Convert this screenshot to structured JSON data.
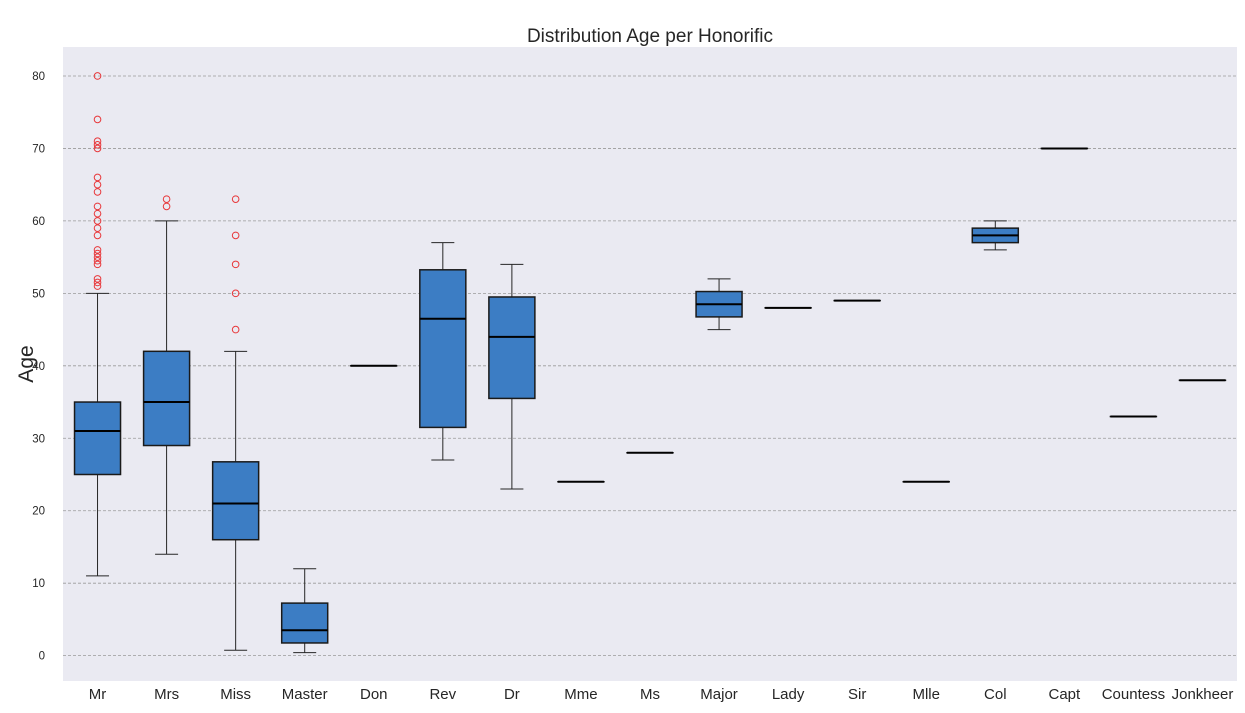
{
  "chart_data": {
    "type": "boxplot",
    "title": "Distribution Age per Honorific",
    "xlabel": "",
    "ylabel": "Age",
    "ylim": [
      -3.5,
      84
    ],
    "yticks": [
      0,
      10,
      20,
      30,
      40,
      50,
      60,
      70,
      80
    ],
    "grid": "horizontal dashed",
    "colors": {
      "background": "#eaeaf2",
      "box_fill": "#3c7dc4",
      "box_edge": "#1a1a1a",
      "median": "#000000",
      "whisker": "#262626",
      "outlier": "#e8383b",
      "grid": "#9a9a9a"
    },
    "categories": [
      "Mr",
      "Mrs",
      "Miss",
      "Master",
      "Don",
      "Rev",
      "Dr",
      "Mme",
      "Ms",
      "Major",
      "Lady",
      "Sir",
      "Mlle",
      "Col",
      "Capt",
      "Countess",
      "Jonkheer"
    ],
    "boxes": [
      {
        "label": "Mr",
        "whislo": 11,
        "q1": 25,
        "med": 31,
        "q3": 35,
        "whishi": 50,
        "fliers": [
          51,
          51.5,
          52,
          54,
          54.5,
          55,
          55.5,
          56,
          58,
          59,
          60,
          61,
          62,
          64,
          65,
          66,
          70,
          70.5,
          71,
          74,
          80
        ]
      },
      {
        "label": "Mrs",
        "whislo": 14,
        "q1": 29,
        "med": 35,
        "q3": 42,
        "whishi": 60,
        "fliers": [
          62,
          63
        ]
      },
      {
        "label": "Miss",
        "whislo": 0.75,
        "q1": 16,
        "med": 21,
        "q3": 26.75,
        "whishi": 42,
        "fliers": [
          45,
          50,
          54,
          58,
          63
        ]
      },
      {
        "label": "Master",
        "whislo": 0.42,
        "q1": 1.75,
        "med": 3.5,
        "q3": 7.25,
        "whishi": 12,
        "fliers": []
      },
      {
        "label": "Don",
        "whislo": 40,
        "q1": 40,
        "med": 40,
        "q3": 40,
        "whishi": 40,
        "fliers": []
      },
      {
        "label": "Rev",
        "whislo": 27,
        "q1": 31.5,
        "med": 46.5,
        "q3": 53.25,
        "whishi": 57,
        "fliers": []
      },
      {
        "label": "Dr",
        "whislo": 23,
        "q1": 35.5,
        "med": 44,
        "q3": 49.5,
        "whishi": 54,
        "fliers": []
      },
      {
        "label": "Mme",
        "whislo": 24,
        "q1": 24,
        "med": 24,
        "q3": 24,
        "whishi": 24,
        "fliers": []
      },
      {
        "label": "Ms",
        "whislo": 28,
        "q1": 28,
        "med": 28,
        "q3": 28,
        "whishi": 28,
        "fliers": []
      },
      {
        "label": "Major",
        "whislo": 45,
        "q1": 46.75,
        "med": 48.5,
        "q3": 50.25,
        "whishi": 52,
        "fliers": []
      },
      {
        "label": "Lady",
        "whislo": 48,
        "q1": 48,
        "med": 48,
        "q3": 48,
        "whishi": 48,
        "fliers": []
      },
      {
        "label": "Sir",
        "whislo": 49,
        "q1": 49,
        "med": 49,
        "q3": 49,
        "whishi": 49,
        "fliers": []
      },
      {
        "label": "Mlle",
        "whislo": 24,
        "q1": 24,
        "med": 24,
        "q3": 24,
        "whishi": 24,
        "fliers": []
      },
      {
        "label": "Col",
        "whislo": 56,
        "q1": 57,
        "med": 58,
        "q3": 59,
        "whishi": 60,
        "fliers": []
      },
      {
        "label": "Capt",
        "whislo": 70,
        "q1": 70,
        "med": 70,
        "q3": 70,
        "whishi": 70,
        "fliers": []
      },
      {
        "label": "Countess",
        "whislo": 33,
        "q1": 33,
        "med": 33,
        "q3": 33,
        "whishi": 33,
        "fliers": []
      },
      {
        "label": "Jonkheer",
        "whislo": 38,
        "q1": 38,
        "med": 38,
        "q3": 38,
        "whishi": 38,
        "fliers": []
      }
    ]
  }
}
